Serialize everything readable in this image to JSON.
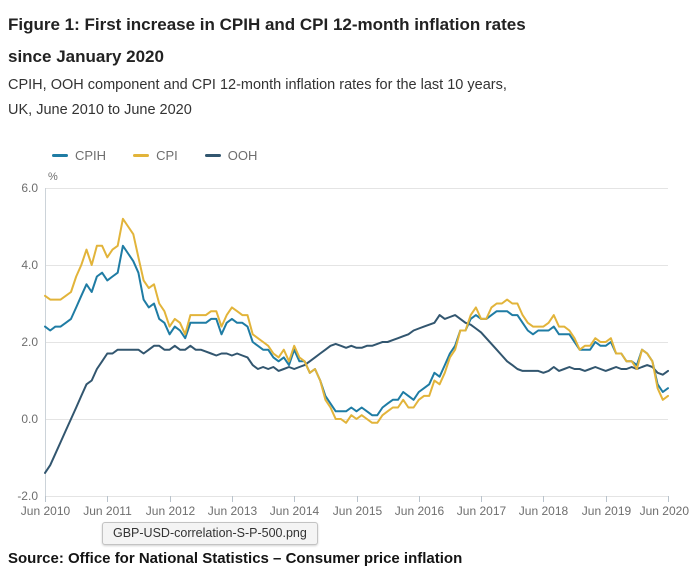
{
  "title_line1": "Figure 1: First increase in CPIH and CPI 12-month inflation rates",
  "title_line2": "since January 2020",
  "subtitle_line1": "CPIH, OOH component and CPI 12-month inflation rates for the last 10 years,",
  "subtitle_line2": "UK, June 2010 to June 2020",
  "tooltip_text": "GBP-USD-correlation-S-P-500.png",
  "source_text": "Source: Office for National Statistics – Consumer price inflation",
  "chart_data": {
    "type": "line",
    "unit_label": "%",
    "grid": true,
    "legend_position": "top-left",
    "ylim": [
      -2.0,
      6.0
    ],
    "y_ticks": [
      "6.0",
      "4.0",
      "2.0",
      "0.0",
      "-2.0"
    ],
    "x_tick_labels": [
      "Jun 2010",
      "Jun 2011",
      "Jun 2012",
      "Jun 2013",
      "Jun 2014",
      "Jun 2015",
      "Jun 2016",
      "Jun 2017",
      "Jun 2018",
      "Jun 2019",
      "Jun 2020"
    ],
    "x_frequency": "monthly",
    "x_range": "June 2010 to June 2020",
    "series": [
      {
        "name": "CPIH",
        "color": "#1F7CA4",
        "values": [
          2.4,
          2.3,
          2.4,
          2.4,
          2.5,
          2.6,
          2.9,
          3.2,
          3.5,
          3.3,
          3.7,
          3.8,
          3.6,
          3.7,
          3.8,
          4.5,
          4.3,
          4.1,
          3.8,
          3.1,
          2.9,
          3.0,
          2.6,
          2.5,
          2.2,
          2.4,
          2.3,
          2.1,
          2.5,
          2.5,
          2.5,
          2.5,
          2.6,
          2.6,
          2.2,
          2.5,
          2.6,
          2.5,
          2.5,
          2.4,
          2.0,
          1.9,
          1.8,
          1.8,
          1.6,
          1.5,
          1.6,
          1.4,
          1.8,
          1.5,
          1.5,
          1.2,
          1.3,
          1.0,
          0.6,
          0.4,
          0.2,
          0.2,
          0.2,
          0.3,
          0.2,
          0.3,
          0.2,
          0.1,
          0.1,
          0.3,
          0.4,
          0.5,
          0.5,
          0.7,
          0.6,
          0.5,
          0.7,
          0.8,
          0.9,
          1.2,
          1.1,
          1.4,
          1.7,
          1.9,
          2.3,
          2.3,
          2.6,
          2.7,
          2.6,
          2.6,
          2.7,
          2.8,
          2.8,
          2.8,
          2.7,
          2.7,
          2.5,
          2.3,
          2.2,
          2.3,
          2.3,
          2.3,
          2.4,
          2.2,
          2.2,
          2.2,
          2.0,
          1.8,
          1.8,
          1.8,
          2.0,
          1.9,
          1.9,
          2.0,
          1.7,
          1.7,
          1.5,
          1.5,
          1.4,
          1.8,
          1.7,
          1.5,
          0.9,
          0.7,
          0.8
        ]
      },
      {
        "name": "CPI",
        "color": "#E2B43A",
        "values": [
          3.2,
          3.1,
          3.1,
          3.1,
          3.2,
          3.3,
          3.7,
          4.0,
          4.4,
          4.0,
          4.5,
          4.5,
          4.2,
          4.4,
          4.5,
          5.2,
          5.0,
          4.8,
          4.2,
          3.6,
          3.4,
          3.5,
          3.0,
          2.8,
          2.4,
          2.6,
          2.5,
          2.2,
          2.7,
          2.7,
          2.7,
          2.7,
          2.8,
          2.8,
          2.4,
          2.7,
          2.9,
          2.8,
          2.7,
          2.7,
          2.2,
          2.1,
          2.0,
          1.9,
          1.7,
          1.6,
          1.8,
          1.5,
          1.9,
          1.6,
          1.5,
          1.2,
          1.3,
          1.0,
          0.5,
          0.3,
          0.0,
          0.0,
          -0.1,
          0.1,
          0.0,
          0.1,
          0.0,
          -0.1,
          -0.1,
          0.1,
          0.2,
          0.3,
          0.3,
          0.5,
          0.3,
          0.3,
          0.5,
          0.6,
          0.6,
          1.0,
          0.9,
          1.2,
          1.6,
          1.8,
          2.3,
          2.3,
          2.7,
          2.9,
          2.6,
          2.6,
          2.9,
          3.0,
          3.0,
          3.1,
          3.0,
          3.0,
          2.7,
          2.5,
          2.4,
          2.4,
          2.4,
          2.5,
          2.7,
          2.4,
          2.4,
          2.3,
          2.1,
          1.8,
          1.9,
          1.9,
          2.1,
          2.0,
          2.0,
          2.1,
          1.7,
          1.7,
          1.5,
          1.5,
          1.3,
          1.8,
          1.7,
          1.5,
          0.8,
          0.5,
          0.6
        ]
      },
      {
        "name": "OOH",
        "color": "#32566F",
        "values": [
          -1.4,
          -1.2,
          -0.9,
          -0.6,
          -0.3,
          0.0,
          0.3,
          0.6,
          0.9,
          1.0,
          1.3,
          1.5,
          1.7,
          1.7,
          1.8,
          1.8,
          1.8,
          1.8,
          1.8,
          1.7,
          1.8,
          1.9,
          1.9,
          1.8,
          1.8,
          1.9,
          1.8,
          1.8,
          1.9,
          1.8,
          1.8,
          1.75,
          1.7,
          1.65,
          1.7,
          1.7,
          1.65,
          1.7,
          1.65,
          1.6,
          1.4,
          1.3,
          1.35,
          1.3,
          1.35,
          1.25,
          1.3,
          1.35,
          1.3,
          1.35,
          1.4,
          1.5,
          1.6,
          1.7,
          1.8,
          1.9,
          1.95,
          1.9,
          1.85,
          1.9,
          1.85,
          1.85,
          1.9,
          1.9,
          1.95,
          2.0,
          2.0,
          2.05,
          2.1,
          2.15,
          2.2,
          2.3,
          2.35,
          2.4,
          2.45,
          2.5,
          2.7,
          2.6,
          2.65,
          2.7,
          2.6,
          2.5,
          2.45,
          2.35,
          2.25,
          2.1,
          1.95,
          1.8,
          1.65,
          1.5,
          1.4,
          1.3,
          1.25,
          1.25,
          1.25,
          1.25,
          1.2,
          1.25,
          1.35,
          1.25,
          1.3,
          1.35,
          1.3,
          1.3,
          1.25,
          1.3,
          1.35,
          1.3,
          1.25,
          1.3,
          1.35,
          1.3,
          1.3,
          1.35,
          1.3,
          1.35,
          1.4,
          1.35,
          1.2,
          1.15,
          1.25
        ]
      }
    ]
  }
}
